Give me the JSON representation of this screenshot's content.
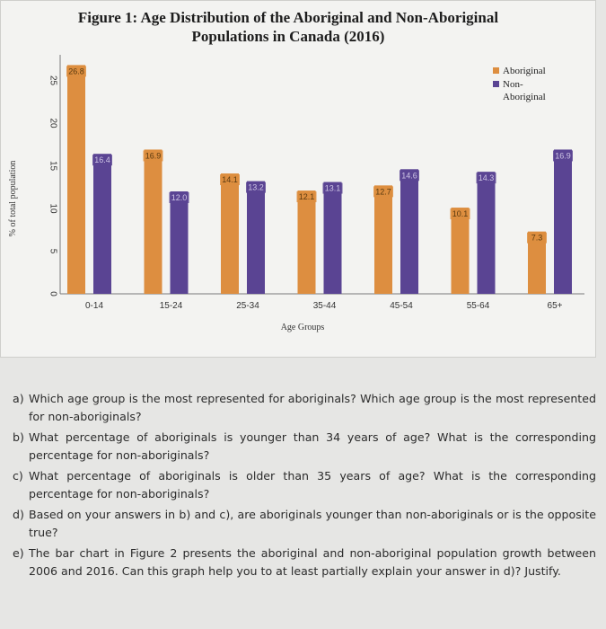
{
  "figure": {
    "title_line1": "Figure 1: Age Distribution of the Aboriginal and Non-Aboriginal",
    "title_line2": "Populations in Canada (2016)"
  },
  "chart_data": {
    "type": "bar",
    "title": "Figure 1: Age Distribution of the Aboriginal and Non-Aboriginal Populations in Canada (2016)",
    "xlabel": "Age Groups",
    "ylabel": "% of total population",
    "categories": [
      "0-14",
      "15-24",
      "25-34",
      "35-44",
      "45-54",
      "55-64",
      "65+"
    ],
    "series": [
      {
        "name": "Aboriginal",
        "color": "#dd8e40",
        "values": [
          26.8,
          16.9,
          14.1,
          12.1,
          12.7,
          10.1,
          7.3
        ],
        "labels": [
          "26.8",
          "16.9",
          "14.1",
          "12.1",
          "12.7",
          "10.1",
          "7.3"
        ]
      },
      {
        "name": "Non-Aboriginal",
        "color": "#5a4493",
        "values": [
          16.4,
          12.0,
          13.2,
          13.1,
          14.6,
          14.3,
          16.9
        ],
        "labels": [
          "16.4",
          "12.0",
          "13.2",
          "13.1",
          "14.6",
          "14.3",
          "16.9"
        ]
      }
    ],
    "legend_labels": [
      "Aboriginal",
      "Non-",
      "Aboriginal"
    ],
    "yticks": [
      0,
      5,
      10,
      15,
      20,
      25
    ],
    "ylim": [
      0,
      28
    ],
    "grid": false,
    "legend_position": "top-right"
  },
  "questions": [
    {
      "letter": "a)",
      "text": "Which age group is the most represented for aboriginals? Which age group is the most represented for non-aboriginals?"
    },
    {
      "letter": "b)",
      "text": "What percentage of aboriginals is younger than 34 years of age? What is the corresponding percentage for non-aboriginals?"
    },
    {
      "letter": "c)",
      "text": "What percentage of aboriginals is older than 35 years of age? What is the corresponding percentage for non-aboriginals?"
    },
    {
      "letter": "d)",
      "text": "Based on your answers in b) and c), are aboriginals younger than non-aboriginals or is the opposite true?"
    },
    {
      "letter": "e)",
      "text": "The bar chart in Figure 2 presents the aboriginal and non-aboriginal population growth between 2006 and 2016. Can this graph help you to at least partially explain your answer in d)? Justify."
    }
  ]
}
